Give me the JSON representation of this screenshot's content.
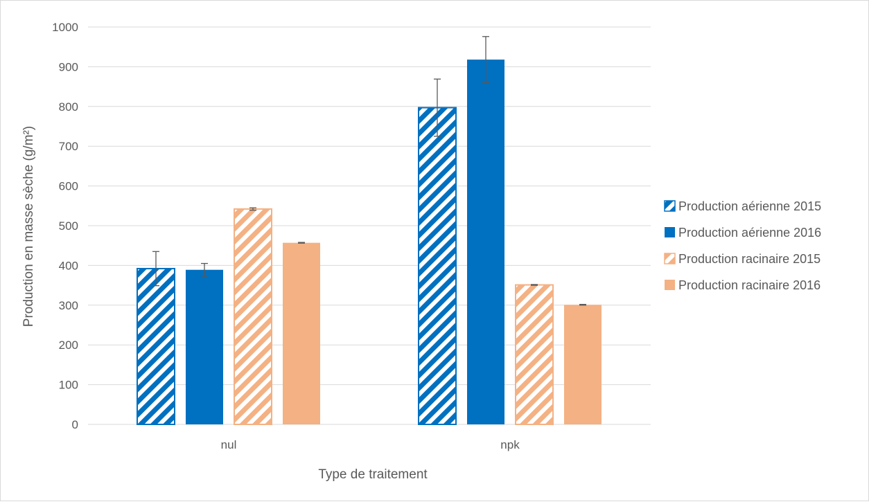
{
  "chart_data": {
    "type": "bar",
    "title": "",
    "xlabel": "Type de traitement",
    "ylabel": "Production en masse sèche (g/m²)",
    "categories": [
      "nul",
      "npk"
    ],
    "ylim": [
      0,
      1000
    ],
    "yticks": [
      0,
      100,
      200,
      300,
      400,
      500,
      600,
      700,
      800,
      900,
      1000
    ],
    "grid": true,
    "legend_position": "right",
    "series": [
      {
        "name": "Production aérienne 2015",
        "values": [
          392,
          797
        ],
        "errors": [
          43,
          72
        ],
        "color": "#0070c0",
        "fill": "hatched"
      },
      {
        "name": "Production aérienne 2016",
        "values": [
          389,
          918
        ],
        "errors": [
          16,
          58
        ],
        "color": "#0070c0",
        "fill": "solid"
      },
      {
        "name": "Production racinaire 2015",
        "values": [
          542,
          351
        ],
        "errors": [
          3,
          1
        ],
        "color": "#f4b183",
        "fill": "hatched"
      },
      {
        "name": "Production racinaire 2016",
        "values": [
          457,
          301
        ],
        "errors": [
          1,
          1
        ],
        "color": "#f4b183",
        "fill": "solid"
      }
    ]
  }
}
